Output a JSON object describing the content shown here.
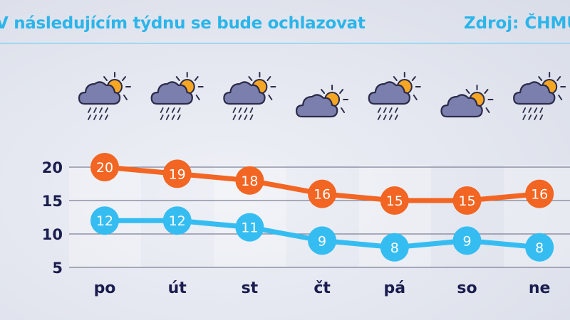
{
  "header": {
    "title": "V následujícím týdnu se bude ochlazovat",
    "source": "Zdroj: ČHMÚ"
  },
  "chart_data": {
    "type": "line",
    "categories": [
      "po",
      "út",
      "st",
      "čt",
      "pá",
      "so",
      "ne"
    ],
    "icons": [
      "rain-partly-cloudy-icon",
      "rain-partly-cloudy-icon",
      "rain-partly-cloudy-icon",
      "partly-cloudy-icon",
      "rain-partly-cloudy-icon",
      "partly-cloudy-icon",
      "rain-partly-cloudy-icon"
    ],
    "yticks": [
      5,
      10,
      15,
      20
    ],
    "ylim": [
      5,
      20
    ],
    "grid": true,
    "series": [
      {
        "values": [
          20,
          19,
          18,
          16,
          15,
          15,
          16
        ],
        "color": "#f26522"
      },
      {
        "values": [
          12,
          12,
          11,
          9,
          8,
          9,
          8
        ],
        "color": "#35bdf2"
      }
    ]
  }
}
